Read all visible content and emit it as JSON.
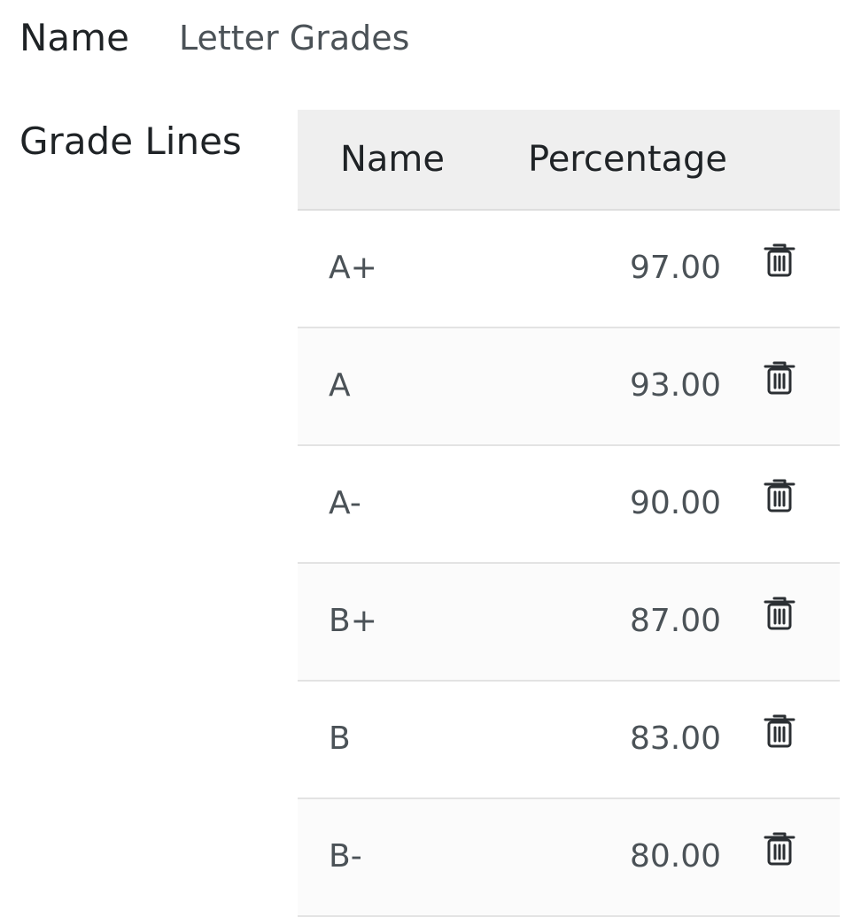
{
  "form": {
    "name_label": "Name",
    "name_value": "Letter Grades",
    "grade_lines_label": "Grade Lines"
  },
  "table": {
    "columns": {
      "name": "Name",
      "percentage": "Percentage"
    },
    "rows": [
      {
        "name": "A+",
        "percentage": "97.00"
      },
      {
        "name": "A",
        "percentage": "93.00"
      },
      {
        "name": "A-",
        "percentage": "90.00"
      },
      {
        "name": "B+",
        "percentage": "87.00"
      },
      {
        "name": "B",
        "percentage": "83.00"
      },
      {
        "name": "B-",
        "percentage": "80.00"
      }
    ],
    "row_action_icon": "trash-icon"
  },
  "colors": {
    "header_background": "#efefef",
    "text_primary": "#1f2326",
    "text_secondary": "#4b5257",
    "row_divider": "#e3e3e3"
  }
}
